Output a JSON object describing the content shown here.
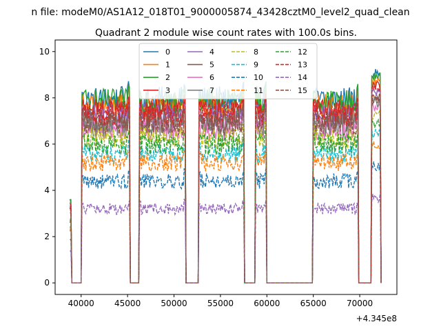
{
  "figure": {
    "suptitle": "n file: modeM0/AS1A12_018T01_9000005874_43428cztM0_level2_quad_clean",
    "title": "Quadrant 2 module wise count rates with 100.0s bins."
  },
  "chart_data": {
    "type": "line",
    "title": "Quadrant 2 module wise count rates with 100.0s bins.",
    "xlabel": "",
    "ylabel": "",
    "x_offset_label": "+4.345e8",
    "xlim": [
      37200,
      74000
    ],
    "ylim": [
      -0.5,
      10.5
    ],
    "xticks": [
      40000,
      45000,
      50000,
      55000,
      60000,
      65000,
      70000
    ],
    "yticks": [
      0,
      2,
      4,
      6,
      8,
      10
    ],
    "grid": false,
    "legend": {
      "placement": "top-center",
      "columns": 4
    },
    "active_intervals": [
      [
        40100,
        45200
      ],
      [
        46300,
        51200
      ],
      [
        52700,
        57500
      ],
      [
        58800,
        59900
      ],
      [
        65000,
        69800
      ],
      [
        71300,
        72200
      ]
    ],
    "zero_interval_end_value_note": "counts are zero between active intervals",
    "series": [
      {
        "name": "0",
        "color": "#1f77b4",
        "dash": "solid",
        "level": 7.9
      },
      {
        "name": "1",
        "color": "#ff7f0e",
        "dash": "solid",
        "level": 7.6
      },
      {
        "name": "2",
        "color": "#2ca02c",
        "dash": "solid",
        "level": 7.8
      },
      {
        "name": "3",
        "color": "#d62728",
        "dash": "solid",
        "level": 7.4
      },
      {
        "name": "4",
        "color": "#9467bd",
        "dash": "solid",
        "level": 7.2
      },
      {
        "name": "5",
        "color": "#8c564b",
        "dash": "solid",
        "level": 7.0
      },
      {
        "name": "6",
        "color": "#e377c2",
        "dash": "solid",
        "level": 6.6
      },
      {
        "name": "7",
        "color": "#7f7f7f",
        "dash": "solid",
        "level": 6.8
      },
      {
        "name": "8",
        "color": "#bcbd22",
        "dash": "dashed",
        "level": 6.3
      },
      {
        "name": "9",
        "color": "#17becf",
        "dash": "dashed",
        "level": 5.6
      },
      {
        "name": "10",
        "color": "#1f77b4",
        "dash": "dashed",
        "level": 4.4
      },
      {
        "name": "11",
        "color": "#ff7f0e",
        "dash": "dashed",
        "level": 5.2
      },
      {
        "name": "12",
        "color": "#2ca02c",
        "dash": "dashed",
        "level": 6.0
      },
      {
        "name": "13",
        "color": "#d62728",
        "dash": "dashed",
        "level": 7.3
      },
      {
        "name": "14",
        "color": "#9467bd",
        "dash": "dashed",
        "level": 3.2
      },
      {
        "name": "15",
        "color": "#8c564b",
        "dash": "dashed",
        "level": 6.9
      }
    ]
  }
}
